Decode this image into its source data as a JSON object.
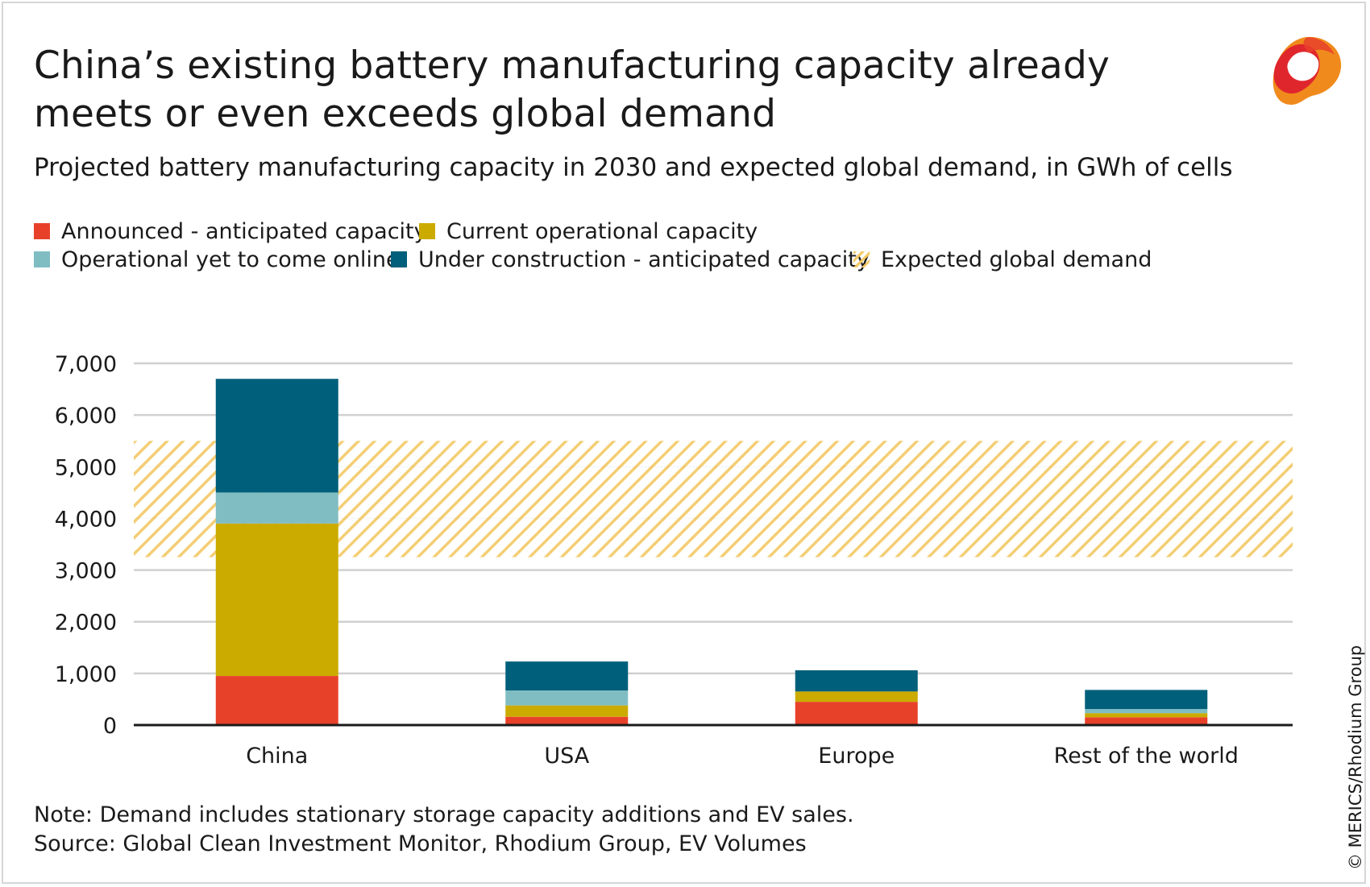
{
  "header": {
    "title": "China’s existing battery manufacturing capacity already meets or even exceeds global demand",
    "subtitle": "Projected battery manufacturing capacity in 2030 and expected global demand, in GWh of cells"
  },
  "legend": {
    "announced": "Announced - anticipated capacity",
    "current": "Current operational capacity",
    "operational": "Operational yet to come online",
    "construction": "Under construction - anticipated capacity",
    "demand": "Expected global demand"
  },
  "colors": {
    "announced": "#e8412a",
    "current": "#cbab00",
    "operational": "#80bdc3",
    "construction": "#005f7a",
    "demand": "#f3c965",
    "grid": "#d0d0d0",
    "axis": "#1a1a1a"
  },
  "chart_data": {
    "type": "bar",
    "stacked": true,
    "categories": [
      "China",
      "USA",
      "Europe",
      "Rest of the world"
    ],
    "series": [
      {
        "name": "Announced - anticipated capacity",
        "values": [
          950,
          160,
          450,
          150
        ]
      },
      {
        "name": "Current operational capacity",
        "values": [
          2950,
          220,
          200,
          80
        ]
      },
      {
        "name": "Operational yet to come online",
        "values": [
          600,
          290,
          0,
          80
        ]
      },
      {
        "name": "Under construction - anticipated capacity",
        "values": [
          2200,
          560,
          410,
          370
        ]
      }
    ],
    "demand_band": {
      "name": "Expected global demand",
      "min": 3250,
      "max": 5500
    },
    "ylim": [
      0,
      7000
    ],
    "yticks": [
      0,
      1000,
      2000,
      3000,
      4000,
      5000,
      6000,
      7000
    ],
    "ytick_labels": [
      "0",
      "1,000",
      "2,000",
      "3,000",
      "4,000",
      "5,000",
      "6,000",
      "7,000"
    ],
    "grid": true
  },
  "footer": {
    "note": "Note: Demand includes stationary storage capacity additions and EV sales.",
    "source": "Source: Global Clean Investment Monitor, Rhodium Group, EV Volumes",
    "copyright": "© MERICS/Rhodium Group"
  }
}
